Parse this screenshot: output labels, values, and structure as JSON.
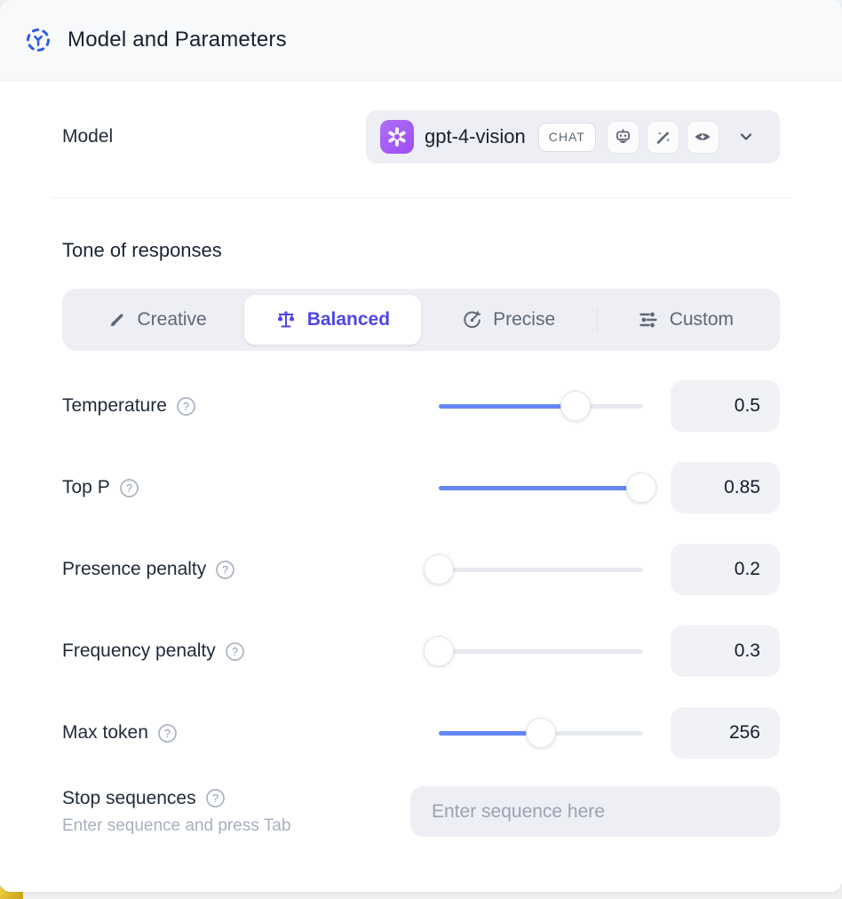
{
  "header": {
    "title": "Model and Parameters",
    "icon": "hub-dashed-circle-icon",
    "icon_color": "#2d5be3"
  },
  "model": {
    "label": "Model",
    "selected": "gpt-4-vision",
    "provider_icon": "openai-logo",
    "type_badge": "CHAT",
    "capability_icons": [
      "robot-icon",
      "magic-wand-icon",
      "vision-eye-icon"
    ],
    "chevron_icon": "chevron-down-icon"
  },
  "tone": {
    "heading": "Tone of responses",
    "options": [
      {
        "label": "Creative",
        "icon": "paintbrush-icon",
        "selected": false
      },
      {
        "label": "Balanced",
        "icon": "balance-scale-icon",
        "selected": true
      },
      {
        "label": "Precise",
        "icon": "target-icon",
        "selected": false
      },
      {
        "label": "Custom",
        "icon": "sliders-icon",
        "selected": false
      }
    ],
    "selected_color": "#4f46e5"
  },
  "parameters": [
    {
      "label": "Temperature",
      "value": "0.5",
      "fill_pct": 67
    },
    {
      "label": "Top P",
      "value": "0.85",
      "fill_pct": 99
    },
    {
      "label": "Presence penalty",
      "value": "0.2",
      "fill_pct": 0
    },
    {
      "label": "Frequency penalty",
      "value": "0.3",
      "fill_pct": 0
    },
    {
      "label": "Max token",
      "value": "256",
      "fill_pct": 50
    }
  ],
  "stop_sequences": {
    "label": "Stop sequences",
    "hint": "Enter sequence and press Tab",
    "placeholder": "Enter sequence here"
  },
  "colors": {
    "slider_accent": "#6487f7",
    "selected_segment_text": "#4f46e5",
    "header_bg": "#f8f9fb",
    "panel_bg": "#edeff4",
    "brand_purple": "#a35cf5",
    "corner_accent_yellow": "#e3bf25"
  }
}
